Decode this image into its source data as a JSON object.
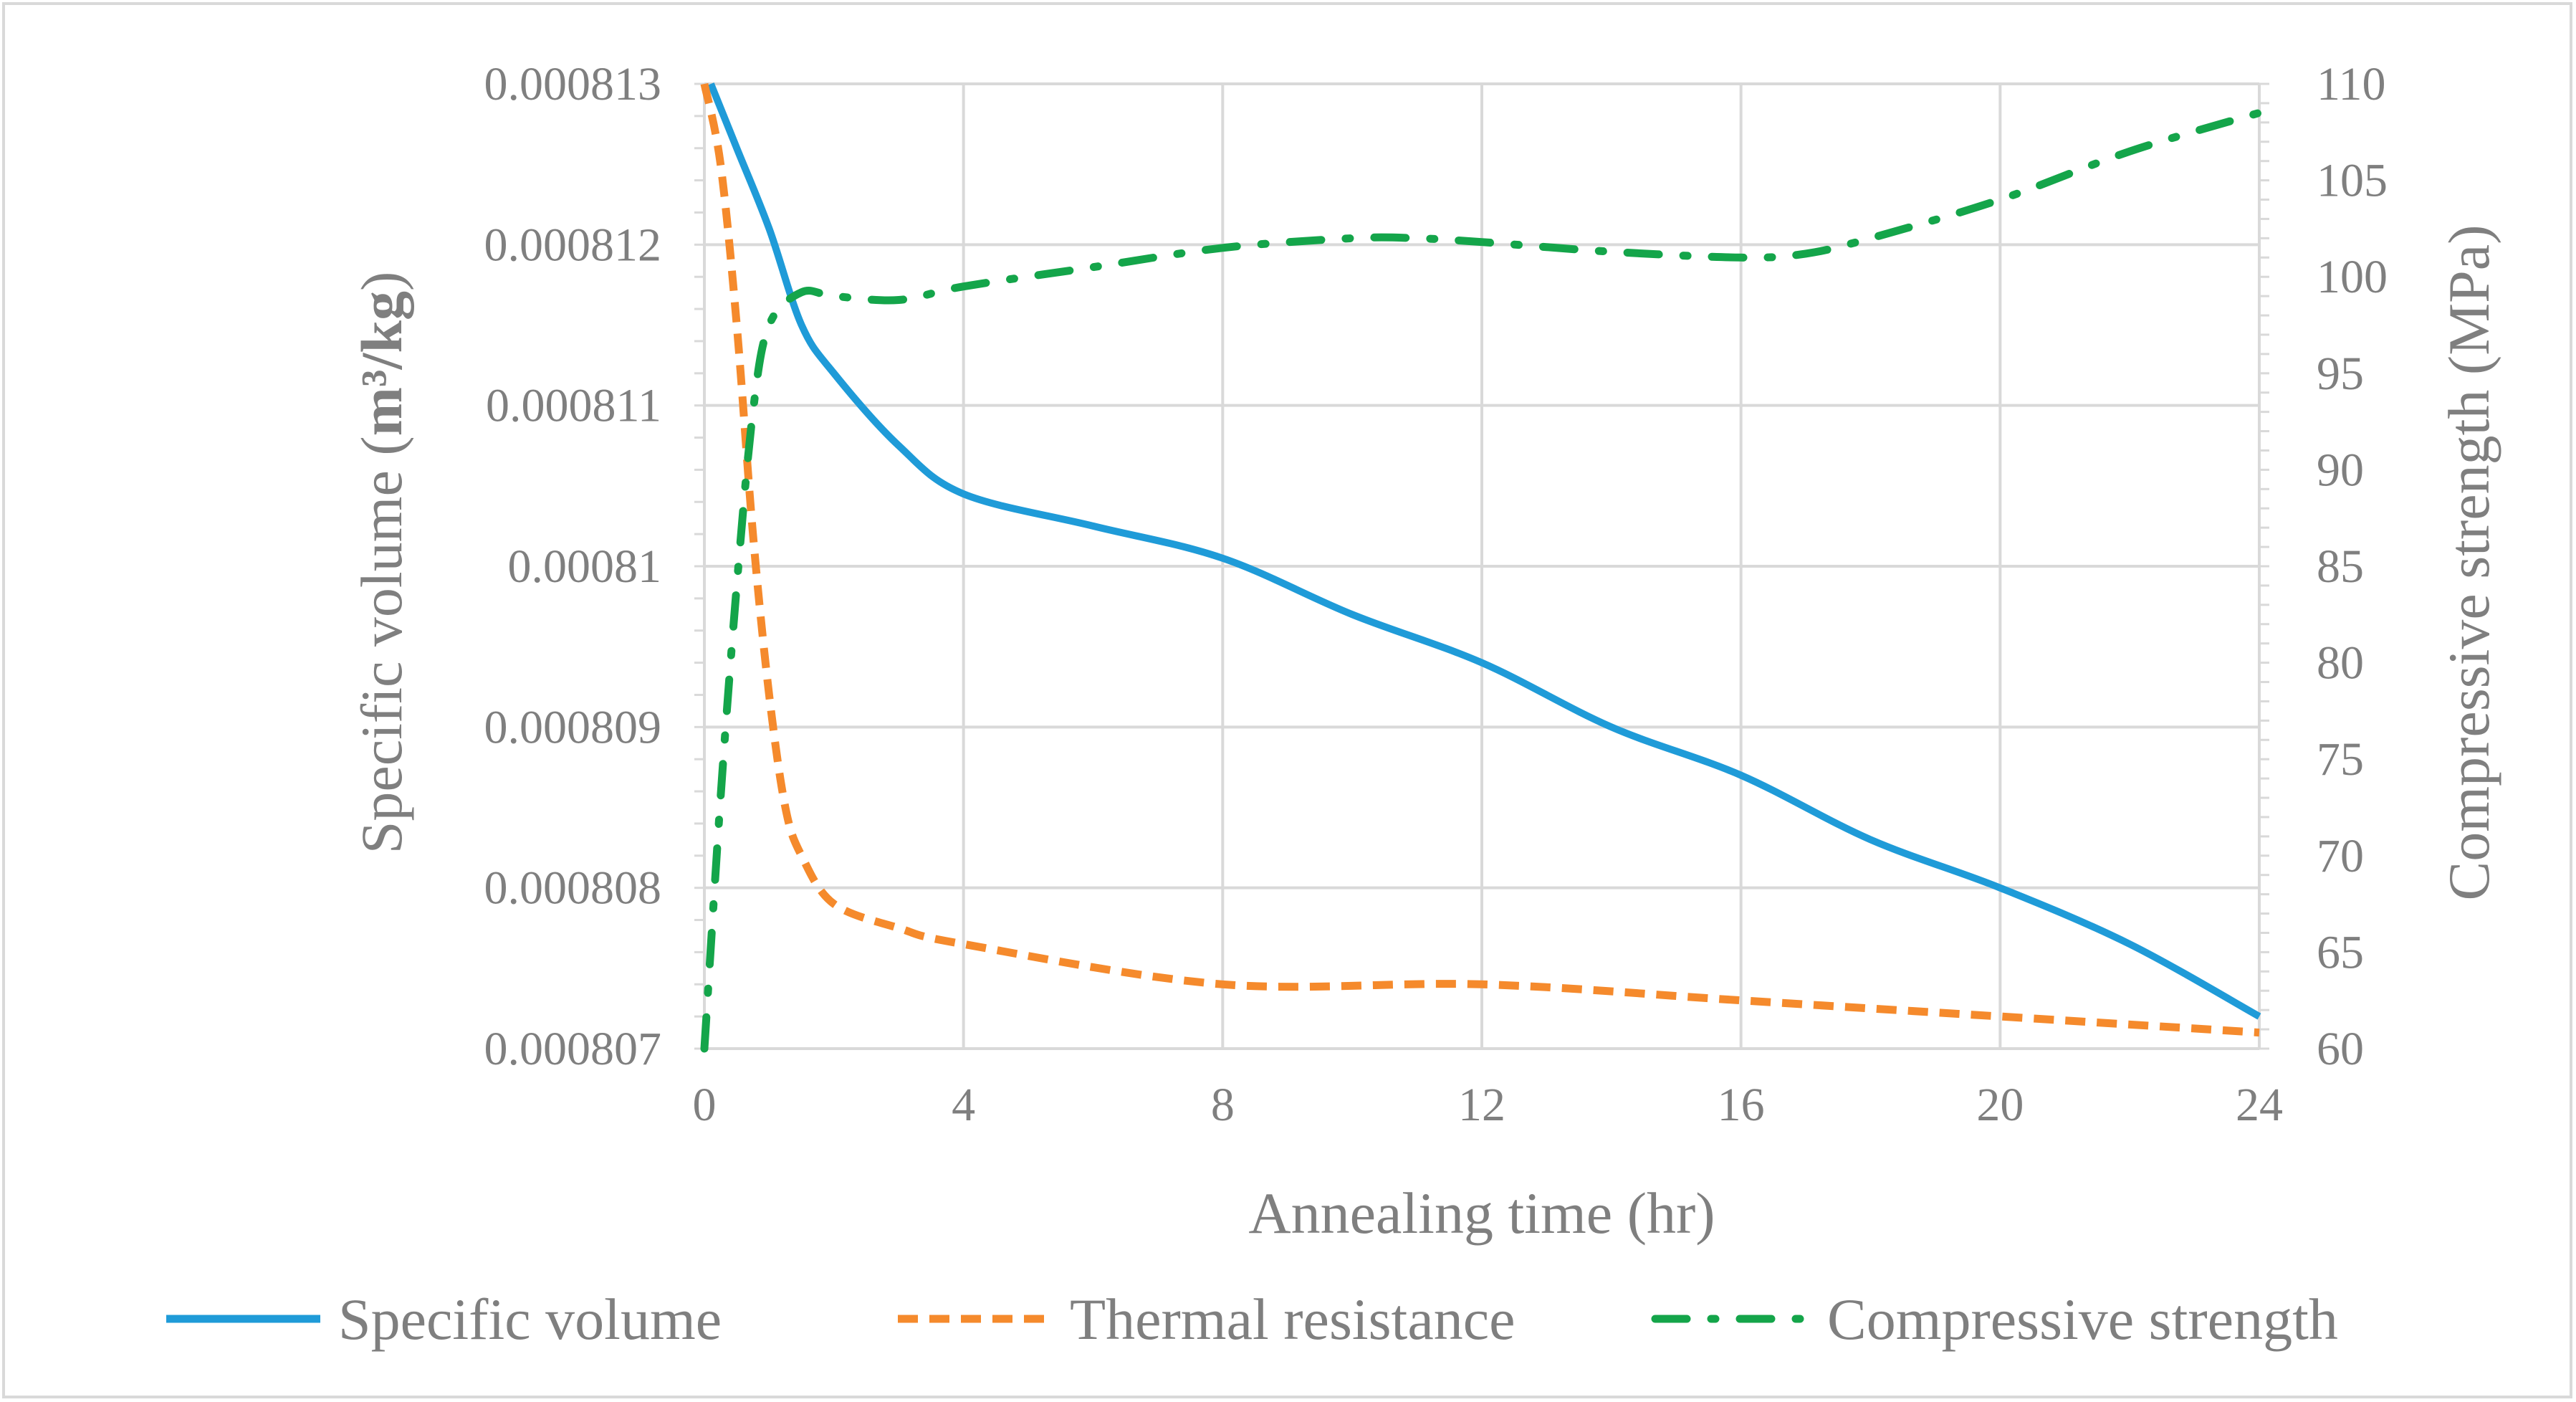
{
  "chart_data": {
    "type": "line",
    "title": "",
    "xlabel": "Annealing time (hr)",
    "ylabel_prefix": "Specific volume (",
    "ylabel_unit": "m³/kg",
    "ylabel_suffix": ")",
    "y2label": "Compressive strength (MPa)",
    "xlim": [
      0,
      24
    ],
    "ylim": [
      0.000807,
      0.000813
    ],
    "y2lim": [
      60,
      110
    ],
    "xticks": [
      "0",
      "4",
      "8",
      "12",
      "16",
      "20",
      "24"
    ],
    "yticks": [
      "0.000807",
      "0.000808",
      "0.000809",
      "0.00081",
      "0.000811",
      "0.000812",
      "0.000813"
    ],
    "y2ticks": [
      "60",
      "65",
      "70",
      "75",
      "80",
      "85",
      "90",
      "95",
      "100",
      "105",
      "110"
    ],
    "grid": true,
    "legend_position": "bottom",
    "series": [
      {
        "name": "Specific volume",
        "axis": "left",
        "color": "#1f9bd8",
        "style": "solid",
        "x": [
          0.1,
          0.5,
          1.0,
          1.5,
          2.0,
          3.0,
          4.0,
          6.0,
          8.0,
          10.0,
          12.0,
          14.0,
          16.0,
          18.0,
          20.0,
          22.0,
          24.0
        ],
        "y": [
          0.000813,
          0.0008126,
          0.0008121,
          0.0008115,
          0.0008112,
          0.00081075,
          0.00081045,
          0.00081025,
          0.00081005,
          0.0008097,
          0.0008094,
          0.000809,
          0.0008087,
          0.0008083,
          0.000808,
          0.00080765,
          0.0008072
        ]
      },
      {
        "name": "Thermal resistance",
        "axis": "left",
        "color": "#f58a2c",
        "style": "dashed",
        "x": [
          0,
          0.25,
          0.5,
          0.75,
          1.0,
          1.25,
          1.5,
          2.0,
          3.0,
          4.0,
          8.0,
          12.0,
          16.0,
          20.0,
          24.0
        ],
        "y": [
          0.000813,
          0.0008125,
          0.0008115,
          0.0008102,
          0.0008092,
          0.0008085,
          0.0008082,
          0.0008079,
          0.00080775,
          0.00080765,
          0.0008074,
          0.0008074,
          0.0008073,
          0.0008072,
          0.0008071
        ]
      },
      {
        "name": "Compressive strength",
        "axis": "right",
        "color": "#14a54a",
        "style": "dash-dot",
        "x": [
          0,
          0.25,
          0.5,
          0.75,
          1.0,
          1.5,
          2.0,
          3.0,
          4.0,
          6.0,
          8.0,
          10.0,
          11.0,
          12.0,
          14.0,
          16.0,
          17.0,
          18.0,
          20.0,
          22.0,
          24.0
        ],
        "y": [
          60,
          73,
          84,
          93,
          97.5,
          99.2,
          99,
          98.8,
          99.5,
          100.5,
          101.5,
          102,
          102,
          101.8,
          101.3,
          101,
          101.2,
          102,
          104,
          106.5,
          108.5
        ]
      }
    ]
  }
}
